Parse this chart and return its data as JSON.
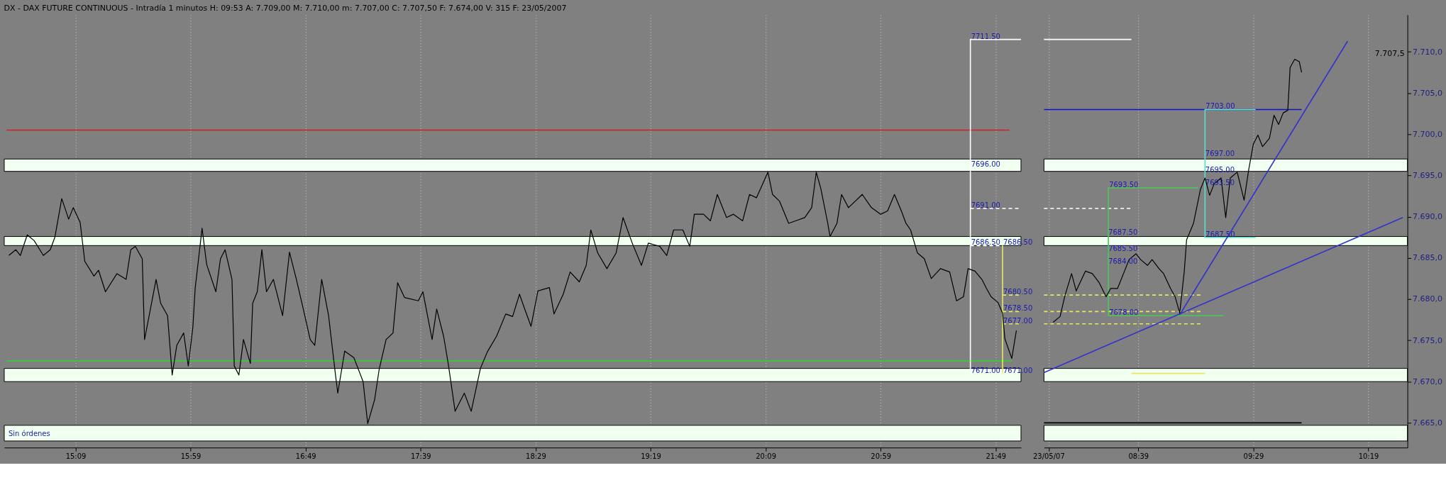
{
  "chart_data": [
    {
      "type": "line",
      "title": "DX - DAX FUTURE CONTINUOUS - Intradía 1 minutos H: 09:53 A: 7.709,00 M: 7.710,00 m: 7.707,00 C: 7.707,50 F: 7.674,00 V: 315 F: 23/05/2007",
      "xlim": [
        "2007-05-22T14:38",
        "2007-05-22T22:00"
      ],
      "ylim": [
        7662,
        7714.5
      ],
      "tick_labels": "x",
      "xticks": [
        {
          "value": "2007-05-22T15:09",
          "label": "15:09"
        },
        {
          "value": "2007-05-22T15:59",
          "label": "15:59"
        },
        {
          "value": "2007-05-22T16:49",
          "label": "16:49"
        },
        {
          "value": "2007-05-22T17:39",
          "label": "17:39"
        },
        {
          "value": "2007-05-22T18:29",
          "label": "18:29"
        },
        {
          "value": "2007-05-22T19:19",
          "label": "19:19"
        },
        {
          "value": "2007-05-22T20:09",
          "label": "20:09"
        },
        {
          "value": "2007-05-22T20:59",
          "label": "20:59"
        },
        {
          "value": "2007-05-22T21:49",
          "label": "21:49"
        }
      ],
      "grid": "x",
      "x": [
        "2007-05-22T14:40",
        "2007-05-22T14:43",
        "2007-05-22T14:45",
        "2007-05-22T14:48",
        "2007-05-22T14:51",
        "2007-05-22T14:55",
        "2007-05-22T14:58",
        "2007-05-22T15:00",
        "2007-05-22T15:03",
        "2007-05-22T15:06",
        "2007-05-22T15:08",
        "2007-05-22T15:11",
        "2007-05-22T15:13",
        "2007-05-22T15:17",
        "2007-05-22T15:19",
        "2007-05-22T15:22",
        "2007-05-22T15:27",
        "2007-05-22T15:31",
        "2007-05-22T15:33",
        "2007-05-22T15:35",
        "2007-05-22T15:38",
        "2007-05-22T15:39",
        "2007-05-22T15:41",
        "2007-05-22T15:44",
        "2007-05-22T15:46",
        "2007-05-22T15:49",
        "2007-05-22T15:51",
        "2007-05-22T15:53",
        "2007-05-22T15:56",
        "2007-05-22T15:58",
        "2007-05-22T16:00",
        "2007-05-22T16:01",
        "2007-05-22T16:04",
        "2007-05-22T16:06",
        "2007-05-22T16:10",
        "2007-05-22T16:12",
        "2007-05-22T16:14",
        "2007-05-22T16:17",
        "2007-05-22T16:18",
        "2007-05-22T16:20",
        "2007-05-22T16:22",
        "2007-05-22T16:25",
        "2007-05-22T16:26",
        "2007-05-22T16:28",
        "2007-05-22T16:30",
        "2007-05-22T16:32",
        "2007-05-22T16:35",
        "2007-05-22T16:39",
        "2007-05-22T16:42",
        "2007-05-22T16:45",
        "2007-05-22T16:48",
        "2007-05-22T16:51",
        "2007-05-22T16:53",
        "2007-05-22T16:56",
        "2007-05-22T16:59",
        "2007-05-22T17:02",
        "2007-05-22T17:03",
        "2007-05-22T17:06",
        "2007-05-22T17:10",
        "2007-05-22T17:14",
        "2007-05-22T17:16",
        "2007-05-22T17:19",
        "2007-05-22T17:21",
        "2007-05-22T17:24",
        "2007-05-22T17:27",
        "2007-05-22T17:29",
        "2007-05-22T17:32",
        "2007-05-22T17:38",
        "2007-05-22T17:40",
        "2007-05-22T17:44",
        "2007-05-22T17:46",
        "2007-05-22T17:49",
        "2007-05-22T17:51",
        "2007-05-22T17:54",
        "2007-05-22T17:58",
        "2007-05-22T18:01",
        "2007-05-22T18:05",
        "2007-05-22T18:08",
        "2007-05-22T18:12",
        "2007-05-22T18:16",
        "2007-05-22T18:19",
        "2007-05-22T18:22",
        "2007-05-22T18:24",
        "2007-05-22T18:27",
        "2007-05-22T18:30",
        "2007-05-22T18:35",
        "2007-05-22T18:37",
        "2007-05-22T18:41",
        "2007-05-22T18:44",
        "2007-05-22T18:48",
        "2007-05-22T18:51",
        "2007-05-22T18:53",
        "2007-05-22T18:56",
        "2007-05-22T19:00",
        "2007-05-22T19:04",
        "2007-05-22T19:07",
        "2007-05-22T19:11",
        "2007-05-22T19:15",
        "2007-05-22T19:18",
        "2007-05-22T19:23",
        "2007-05-22T19:26",
        "2007-05-22T19:29",
        "2007-05-22T19:33",
        "2007-05-22T19:36",
        "2007-05-22T19:38",
        "2007-05-22T19:42",
        "2007-05-22T19:45",
        "2007-05-22T19:48",
        "2007-05-22T19:52",
        "2007-05-22T19:55",
        "2007-05-22T19:59",
        "2007-05-22T20:02",
        "2007-05-22T20:05",
        "2007-05-22T20:10",
        "2007-05-22T20:12",
        "2007-05-22T20:15",
        "2007-05-22T20:19",
        "2007-05-22T20:22",
        "2007-05-22T20:26",
        "2007-05-22T20:29",
        "2007-05-22T20:31",
        "2007-05-22T20:33",
        "2007-05-22T20:36",
        "2007-05-22T20:37",
        "2007-05-22T20:40",
        "2007-05-22T20:42",
        "2007-05-22T20:45",
        "2007-05-22T20:51",
        "2007-05-22T20:55",
        "2007-05-22T20:59",
        "2007-05-22T21:02",
        "2007-05-22T21:05",
        "2007-05-22T21:08",
        "2007-05-22T21:10",
        "2007-05-22T21:12",
        "2007-05-22T21:15",
        "2007-05-22T21:18",
        "2007-05-22T21:21",
        "2007-05-22T21:25",
        "2007-05-22T21:29",
        "2007-05-22T21:32",
        "2007-05-22T21:35",
        "2007-05-22T21:37",
        "2007-05-22T21:40",
        "2007-05-22T21:43",
        "2007-05-22T21:45",
        "2007-05-22T21:47",
        "2007-05-22T21:50",
        "2007-05-22T21:52",
        "2007-05-22T21:53",
        "2007-05-22T21:56",
        "2007-05-22T21:57",
        "2007-05-22T21:58"
      ],
      "series": [
        {
          "color": "#000000",
          "values": [
            7685.3,
            7686.0,
            7685.3,
            7687.8,
            7687.1,
            7685.3,
            7686.0,
            7687.5,
            7692.2,
            7689.7,
            7691.1,
            7689.3,
            7684.6,
            7682.8,
            7683.5,
            7680.9,
            7683.1,
            7682.4,
            7686.0,
            7686.4,
            7684.9,
            7675.1,
            7678.0,
            7682.4,
            7679.5,
            7678.0,
            7670.8,
            7674.4,
            7675.9,
            7671.9,
            7676.6,
            7681.3,
            7688.6,
            7684.2,
            7680.9,
            7684.9,
            7686.0,
            7682.4,
            7671.9,
            7670.8,
            7675.1,
            7672.2,
            7679.5,
            7680.9,
            7686.0,
            7680.9,
            7682.4,
            7678.0,
            7685.7,
            7682.4,
            7678.8,
            7675.1,
            7674.4,
            7682.4,
            7678.0,
            7670.8,
            7668.6,
            7673.7,
            7672.9,
            7670.0,
            7664.9,
            7667.8,
            7671.5,
            7675.1,
            7675.9,
            7682.0,
            7680.2,
            7679.8,
            7680.9,
            7675.1,
            7678.8,
            7675.5,
            7672.2,
            7666.4,
            7668.6,
            7666.4,
            7671.6,
            7673.6,
            7675.5,
            7678.2,
            7677.9,
            7680.6,
            7679.0,
            7676.7,
            7681.0,
            7681.4,
            7678.2,
            7680.6,
            7683.3,
            7682.1,
            7684.1,
            7688.4,
            7685.6,
            7683.7,
            7685.6,
            7689.9,
            7686.8,
            7684.1,
            7686.8,
            7686.4,
            7685.3,
            7688.4,
            7688.4,
            7686.4,
            7690.3,
            7690.3,
            7689.5,
            7692.7,
            7689.9,
            7690.3,
            7689.5,
            7692.7,
            7692.3,
            7695.4,
            7692.7,
            7691.9,
            7689.2,
            7689.5,
            7689.9,
            7691.1,
            7695.4,
            7693.4,
            7689.2,
            7687.6,
            7689.2,
            7692.7,
            7691.1,
            7692.7,
            7691.1,
            7690.3,
            7690.7,
            7692.7,
            7690.7,
            7689.2,
            7688.4,
            7685.6,
            7684.9,
            7682.5,
            7683.7,
            7683.3,
            7679.8,
            7680.3,
            7683.7,
            7683.4,
            7682.4,
            7681.3,
            7680.3,
            7679.6,
            7678.3,
            7675.2,
            7672.8,
            7674.5,
            7676.2
          ]
        },
        {
          "type": "line",
          "color": "#d42020",
          "x": [
            "2007-05-22T14:39",
            "2007-05-22T21:55"
          ],
          "values": [
            7700.5,
            7700.5
          ]
        },
        {
          "type": "line",
          "color": "#33cc33",
          "x": [
            "2007-05-22T14:39",
            "2007-05-22T21:56"
          ],
          "values": [
            7672.5,
            7672.5
          ]
        },
        {
          "type": "line",
          "color": "#ffffff",
          "x": [
            "2007-05-22T21:38",
            "2007-05-22T21:38",
            "2007-05-22T22:00"
          ],
          "values": [
            7671,
            7711.5,
            7711.5
          ]
        },
        {
          "type": "line",
          "color": "#ffffff",
          "line_style": "dashed",
          "x": [
            "2007-05-22T21:38",
            "2007-05-22T22:00"
          ],
          "values": [
            7691,
            7691
          ]
        },
        {
          "type": "line",
          "color": "#ffffff",
          "line_style": "dashed",
          "x": [
            "2007-05-22T21:38",
            "2007-05-22T21:52"
          ],
          "values": [
            7686.5,
            7686.5
          ]
        },
        {
          "type": "line",
          "color": "#e8e860",
          "x": [
            "2007-05-22T21:52",
            "2007-05-22T21:52"
          ],
          "values": [
            7686.5,
            7671
          ]
        },
        {
          "type": "line",
          "color": "#e8e860",
          "line_style": "dashed",
          "x": [
            "2007-05-22T21:52",
            "2007-05-22T22:00"
          ],
          "values": [
            7680.5,
            7680.5
          ]
        },
        {
          "type": "line",
          "color": "#e8e860",
          "line_style": "dashed",
          "x": [
            "2007-05-22T21:52",
            "2007-05-22T22:00"
          ],
          "values": [
            7678.5,
            7678.5
          ]
        },
        {
          "type": "line",
          "color": "#e8e860",
          "line_style": "dashed",
          "x": [
            "2007-05-22T21:52",
            "2007-05-22T22:00"
          ],
          "values": [
            7677,
            7677
          ]
        }
      ],
      "bands": [
        {
          "axis": "y",
          "from": 7695.5,
          "to": 7697.0,
          "color": "#f0fff0"
        },
        {
          "axis": "y",
          "from": 7686.5,
          "to": 7687.6,
          "color": "#f0fff0"
        },
        {
          "axis": "y",
          "from": 7670.0,
          "to": 7671.6,
          "color": "#f0fff0"
        },
        {
          "axis": "y",
          "from": 7662.8,
          "to": 7664.7,
          "color": "#f0fff0"
        }
      ],
      "annotations": [
        {
          "text": "7711.50",
          "x": "2007-05-22T21:38",
          "y": 7711.5
        },
        {
          "text": "7696.00",
          "x": "2007-05-22T21:38",
          "y": 7696
        },
        {
          "text": "7691.00",
          "x": "2007-05-22T21:38",
          "y": 7691
        },
        {
          "text": "7686.50",
          "x": "2007-05-22T21:38",
          "y": 7686.5
        },
        {
          "text": "7686.50",
          "x": "2007-05-22T21:52",
          "y": 7686.5
        },
        {
          "text": "7680.50",
          "x": "2007-05-22T21:52",
          "y": 7680.5
        },
        {
          "text": "7678.50",
          "x": "2007-05-22T21:52",
          "y": 7678.5
        },
        {
          "text": "7677.00",
          "x": "2007-05-22T21:52",
          "y": 7677
        },
        {
          "text": "7671.00",
          "x": "2007-05-22T21:38",
          "y": 7671
        },
        {
          "text": "7671.00",
          "x": "2007-05-22T21:52",
          "y": 7671
        },
        "Sin órdenes"
      ]
    },
    {
      "type": "line",
      "xlim": [
        "2007-05-23T07:58",
        "2007-05-23T10:36"
      ],
      "ylim": [
        7662,
        7714.5
      ],
      "xticks": [
        {
          "value": "2007-05-23T08:00",
          "label": "23/05/07"
        },
        {
          "value": "2007-05-23T08:39",
          "label": "08:39"
        },
        {
          "value": "2007-05-23T09:29",
          "label": "09:29"
        },
        {
          "value": "2007-05-23T10:19",
          "label": "10:19"
        }
      ],
      "yticks": [
        {
          "value": 7665,
          "label": "7.665,0"
        },
        {
          "value": 7670,
          "label": "7.670,0"
        },
        {
          "value": 7675,
          "label": "7.675,0"
        },
        {
          "value": 7680,
          "label": "7.680,0"
        },
        {
          "value": 7685,
          "label": "7.685,0"
        },
        {
          "value": 7690,
          "label": "7.690,0"
        },
        {
          "value": 7695,
          "label": "7.695,0"
        },
        {
          "value": 7700,
          "label": "7.700,0"
        },
        {
          "value": 7705,
          "label": "7.705,0"
        },
        {
          "value": 7710,
          "label": "7.710,0"
        }
      ],
      "grid": "x",
      "x": [
        "2007-05-23T08:02",
        "2007-05-23T08:05",
        "2007-05-23T08:07",
        "2007-05-23T08:10",
        "2007-05-23T08:12",
        "2007-05-23T08:16",
        "2007-05-23T08:19",
        "2007-05-23T08:22",
        "2007-05-23T08:25",
        "2007-05-23T08:27",
        "2007-05-23T08:30",
        "2007-05-23T08:33",
        "2007-05-23T08:35",
        "2007-05-23T08:38",
        "2007-05-23T08:40",
        "2007-05-23T08:43",
        "2007-05-23T08:45",
        "2007-05-23T08:48",
        "2007-05-23T08:50",
        "2007-05-23T08:53",
        "2007-05-23T08:55",
        "2007-05-23T08:57",
        "2007-05-23T08:59",
        "2007-05-23T09:00",
        "2007-05-23T09:03",
        "2007-05-23T09:06",
        "2007-05-23T09:08",
        "2007-05-23T09:10",
        "2007-05-23T09:12",
        "2007-05-23T09:15",
        "2007-05-23T09:17",
        "2007-05-23T09:19",
        "2007-05-23T09:22",
        "2007-05-23T09:25",
        "2007-05-23T09:27",
        "2007-05-23T09:29",
        "2007-05-23T09:31",
        "2007-05-23T09:33",
        "2007-05-23T09:36",
        "2007-05-23T09:38",
        "2007-05-23T09:40",
        "2007-05-23T09:42",
        "2007-05-23T09:44",
        "2007-05-23T09:45",
        "2007-05-23T09:47",
        "2007-05-23T09:49",
        "2007-05-23T09:50"
      ],
      "series": [
        {
          "color": "#000000",
          "values": [
            7677.2,
            7677.9,
            7680.3,
            7683.1,
            7681.0,
            7683.4,
            7683.1,
            7682.0,
            7680.3,
            7681.3,
            7681.3,
            7683.4,
            7684.8,
            7685.5,
            7684.8,
            7684.1,
            7684.8,
            7683.7,
            7683.1,
            7681.3,
            7680.3,
            7678.3,
            7683.4,
            7687.2,
            7689.2,
            7693.3,
            7694.7,
            7692.6,
            7694.0,
            7694.7,
            7689.9,
            7694.7,
            7695.4,
            7692.0,
            7695.7,
            7698.8,
            7699.9,
            7698.5,
            7699.5,
            7702.3,
            7701.2,
            7702.6,
            7702.9,
            7708.1,
            7709.1,
            7708.8,
            7707.5
          ]
        },
        {
          "type": "line",
          "color": "#1010c8",
          "x": [
            "2007-05-23T07:58",
            "2007-05-23T09:50"
          ],
          "values": [
            7703,
            7703
          ]
        },
        {
          "type": "line",
          "color": "#000000",
          "x": [
            "2007-05-23T07:58",
            "2007-05-23T09:50"
          ],
          "values": [
            7665,
            7665
          ]
        },
        {
          "type": "line",
          "color": "#ffffff",
          "x": [
            "2007-05-23T07:58",
            "2007-05-23T08:36"
          ],
          "values": [
            7711.5,
            7711.5
          ]
        },
        {
          "type": "line",
          "color": "#ffffff",
          "line_style": "dashed",
          "x": [
            "2007-05-23T07:58",
            "2007-05-23T08:36"
          ],
          "values": [
            7691,
            7691
          ]
        },
        {
          "type": "line",
          "color": "#e8e860",
          "x": [
            "2007-05-23T08:36",
            "2007-05-23T09:08"
          ],
          "values": [
            7671,
            7671
          ]
        },
        {
          "type": "line",
          "color": "#e8e860",
          "line_style": "dashed",
          "x": [
            "2007-05-23T07:58",
            "2007-05-23T09:07"
          ],
          "values": [
            7680.5,
            7680.5
          ]
        },
        {
          "type": "line",
          "color": "#e8e860",
          "line_style": "dashed",
          "x": [
            "2007-05-23T07:58",
            "2007-05-23T09:07"
          ],
          "values": [
            7678.5,
            7678.5
          ]
        },
        {
          "type": "line",
          "color": "#e8e860",
          "line_style": "dashed",
          "x": [
            "2007-05-23T07:58",
            "2007-05-23T09:07"
          ],
          "values": [
            7677,
            7677
          ]
        },
        {
          "type": "line",
          "color": "#44cc55",
          "x": [
            "2007-05-23T09:05",
            "2007-05-23T08:26",
            "2007-05-23T08:26",
            "2007-05-23T09:16"
          ],
          "values": [
            7693.5,
            7693.5,
            7678,
            7678
          ]
        },
        {
          "type": "line",
          "color": "#55e0d0",
          "x": [
            "2007-05-23T09:30",
            "2007-05-23T09:08",
            "2007-05-23T09:08",
            "2007-05-23T09:30"
          ],
          "values": [
            7703,
            7703,
            7687.5,
            7687.5
          ]
        },
        {
          "type": "line",
          "color": "#3333cc",
          "x": [
            "2007-05-23T07:58",
            "2007-05-23T10:34"
          ],
          "values": [
            7671.1,
            7689.9
          ]
        },
        {
          "type": "line",
          "color": "#3333cc",
          "x": [
            "2007-05-23T08:57",
            "2007-05-23T10:10"
          ],
          "values": [
            7678.1,
            7711.3
          ]
        }
      ],
      "bands": [
        {
          "axis": "y",
          "from": 7695.5,
          "to": 7697.0,
          "color": "#f0fff0"
        },
        {
          "axis": "y",
          "from": 7686.5,
          "to": 7687.6,
          "color": "#f0fff0"
        },
        {
          "axis": "y",
          "from": 7670.0,
          "to": 7671.6,
          "color": "#f0fff0"
        },
        {
          "axis": "y",
          "from": 7662.8,
          "to": 7664.7,
          "color": "#f0fff0"
        }
      ],
      "annotations": [
        {
          "text": "7693.50",
          "x": "2007-05-23T08:26",
          "y": 7693.5
        },
        {
          "text": "7678.00",
          "x": "2007-05-23T08:26",
          "y": 7678
        },
        {
          "text": "7703.00",
          "x": "2007-05-23T09:08",
          "y": 7703
        },
        {
          "text": "7687.50",
          "x": "2007-05-23T09:08",
          "y": 7687.5
        },
        "7.707,5",
        "7687.50",
        "7685.50",
        "7684.00",
        "7697.00",
        "7695.00",
        "7693.50"
      ]
    }
  ]
}
